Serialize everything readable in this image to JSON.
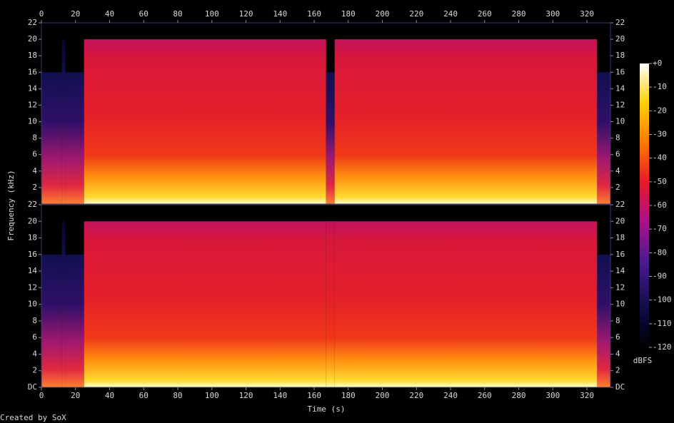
{
  "chart_data": {
    "type": "spectrogram",
    "x_label": "Time (s)",
    "y_label": "Frequency (kHz)",
    "xlim": [
      0,
      333.8
    ],
    "xticks": [
      0,
      20,
      40,
      60,
      80,
      100,
      120,
      140,
      160,
      180,
      200,
      220,
      240,
      260,
      280,
      300,
      320
    ],
    "channels": [
      {
        "ylim": [
          0,
          22
        ],
        "yticks": [
          2,
          4,
          6,
          8,
          10,
          12,
          14,
          16,
          18,
          20,
          22
        ],
        "bins": [
          0,
          12,
          14,
          25,
          167,
          172,
          326,
          333.8
        ],
        "values": [
          16,
          20,
          16,
          20,
          16,
          20,
          16
        ]
      },
      {
        "ylim": [
          0,
          22
        ],
        "yticks": [
          {
            "value": 0,
            "label": "DC"
          },
          2,
          4,
          6,
          8,
          10,
          12,
          14,
          16,
          18,
          20,
          22
        ],
        "bins": [
          0,
          12,
          14,
          25,
          167,
          172,
          326,
          333.8
        ],
        "values": [
          16,
          20,
          16,
          20,
          20,
          20,
          16
        ]
      }
    ],
    "colorbar": {
      "label": "dBFS",
      "lim": [
        -120,
        0
      ],
      "ticks": [
        -120,
        -110,
        -100,
        -90,
        -80,
        -70,
        -60,
        -50,
        -40,
        -30,
        -20,
        -10,
        {
          "value": 0,
          "label": "+0"
        }
      ]
    }
  },
  "credit": "Created by SoX"
}
